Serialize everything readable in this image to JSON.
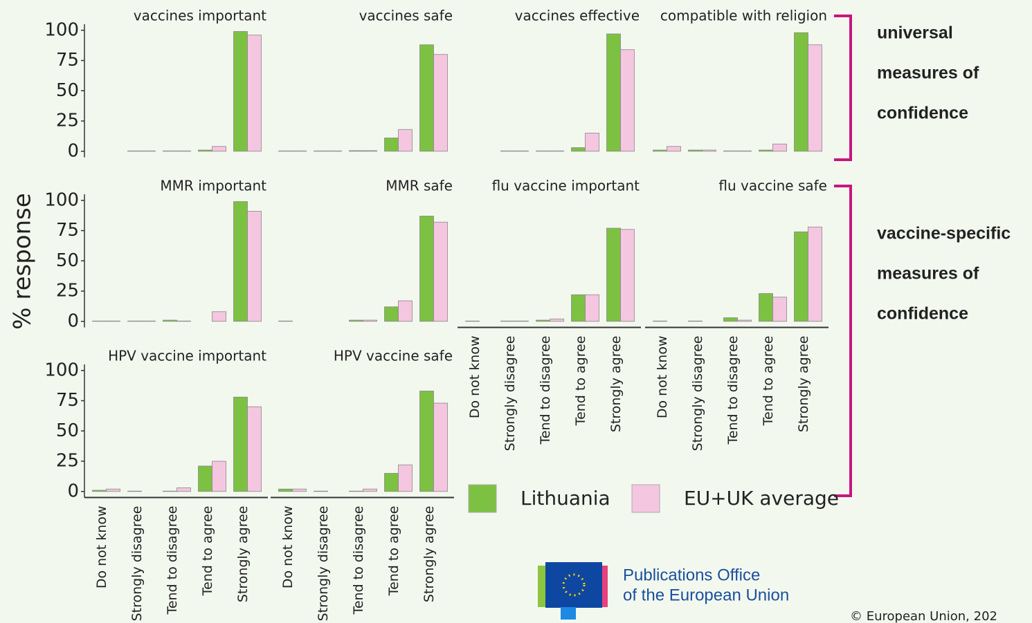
{
  "chart_data": {
    "type": "bar",
    "ylabel": "% response",
    "categories": [
      "Do not know",
      "Strongly disagree",
      "Tend to disagree",
      "Tend to agree",
      "Strongly agree"
    ],
    "panels": [
      "vaccines important",
      "vaccines safe",
      "vaccines effective",
      "compatible with religion",
      "MMR important",
      "MMR safe",
      "flu vaccine important",
      "flu vaccine safe",
      "HPV vaccine important",
      "HPV vaccine safe"
    ],
    "series": [
      {
        "name": "Lithuania",
        "color": "#7dc142",
        "values": [
          [
            0,
            0.3,
            0.3,
            1,
            99
          ],
          [
            0.3,
            0.3,
            0.5,
            11,
            88
          ],
          [
            0,
            0.3,
            0.3,
            3,
            97
          ],
          [
            1,
            1,
            0.3,
            1,
            98
          ],
          [
            0.3,
            0.3,
            1,
            0,
            99
          ],
          [
            0.3,
            0,
            1,
            12,
            87
          ],
          [
            0.3,
            0.3,
            1,
            22,
            77
          ],
          [
            0.3,
            0.3,
            3,
            23,
            74
          ],
          [
            1,
            0.3,
            0.3,
            21,
            78
          ],
          [
            2,
            0.3,
            0.3,
            15,
            83
          ]
        ]
      },
      {
        "name": "EU+UK average",
        "color": "#f5c6e0",
        "values": [
          [
            0,
            0.3,
            0.3,
            4,
            96
          ],
          [
            0.3,
            0.3,
            0.5,
            18,
            80
          ],
          [
            0,
            0.3,
            0.3,
            15,
            84
          ],
          [
            4,
            1,
            0.3,
            6,
            88
          ],
          [
            0.3,
            0.3,
            0.3,
            8,
            91
          ],
          [
            0,
            0,
            1,
            17,
            82
          ],
          [
            0,
            0.3,
            2,
            22,
            76
          ],
          [
            0,
            0,
            1,
            20,
            78
          ],
          [
            2,
            0,
            3,
            25,
            70
          ],
          [
            2,
            0,
            2,
            22,
            73
          ]
        ]
      }
    ],
    "ylim": [
      -5,
      105
    ],
    "yticks": [
      0,
      25,
      50,
      75,
      100
    ],
    "annotations": [
      {
        "lines": [
          "universal",
          "measures of",
          "confidence"
        ]
      },
      {
        "lines": [
          "vaccine-specific",
          "measures of",
          "confidence"
        ]
      }
    ]
  },
  "logo": {
    "lines": [
      "Publications Office",
      "of the European Union"
    ]
  },
  "copyright": "© European Union, 202"
}
